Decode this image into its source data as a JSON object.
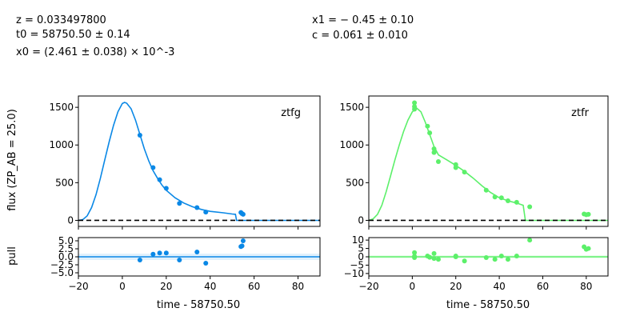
{
  "header": {
    "z": "z = 0.033497800",
    "t0": "t0 = 58750.50 ± 0.14",
    "x0": "x0 = (2.461 ± 0.038) × 10^-3",
    "x1": "x1 = − 0.45 ± 0.10",
    "c": "c = 0.061 ± 0.010"
  },
  "labels": {
    "flux_ylabel": "flux (ZP_AB = 25.0)",
    "pull_ylabel": "pull",
    "xlabel": "time - 58750.50"
  },
  "chart_data": [
    {
      "type": "scatter",
      "panel": "flux",
      "band": "ztfg",
      "color": "#0a88e6",
      "xlim": [
        -20,
        90
      ],
      "ylim": [
        -80,
        1650
      ],
      "xticks": [
        -20,
        0,
        20,
        40,
        60,
        80
      ],
      "yticks": [
        0,
        500,
        1000,
        1500
      ],
      "points": [
        [
          8,
          1130
        ],
        [
          14,
          700
        ],
        [
          17,
          540
        ],
        [
          20,
          425
        ],
        [
          26,
          225
        ],
        [
          34,
          170
        ],
        [
          38,
          110
        ],
        [
          54,
          105
        ],
        [
          54.5,
          90
        ],
        [
          55,
          80
        ]
      ],
      "model": [
        [
          -20,
          0
        ],
        [
          -18,
          10
        ],
        [
          -16,
          60
        ],
        [
          -14,
          170
        ],
        [
          -12,
          340
        ],
        [
          -10,
          560
        ],
        [
          -8,
          800
        ],
        [
          -6,
          1040
        ],
        [
          -4,
          1260
        ],
        [
          -2,
          1440
        ],
        [
          0,
          1550
        ],
        [
          1,
          1565
        ],
        [
          2,
          1555
        ],
        [
          4,
          1480
        ],
        [
          6,
          1330
        ],
        [
          8,
          1140
        ],
        [
          10,
          950
        ],
        [
          12,
          790
        ],
        [
          14,
          660
        ],
        [
          16,
          560
        ],
        [
          18,
          470
        ],
        [
          20,
          400
        ],
        [
          24,
          300
        ],
        [
          28,
          230
        ],
        [
          32,
          180
        ],
        [
          36,
          145
        ],
        [
          40,
          120
        ],
        [
          46,
          100
        ],
        [
          50,
          85
        ],
        [
          51.5,
          80
        ],
        [
          52,
          0
        ],
        [
          90,
          0
        ]
      ],
      "baseline": 0
    },
    {
      "type": "scatter",
      "panel": "flux",
      "band": "ztfr",
      "color": "#5cf06a",
      "xlim": [
        -20,
        90
      ],
      "ylim": [
        -80,
        1650
      ],
      "xticks": [
        -20,
        0,
        20,
        40,
        60,
        80
      ],
      "yticks": [
        0,
        500,
        1000,
        1500
      ],
      "points": [
        [
          1,
          1560
        ],
        [
          1,
          1510
        ],
        [
          1,
          1475
        ],
        [
          7,
          1250
        ],
        [
          8,
          1160
        ],
        [
          10,
          950
        ],
        [
          10,
          900
        ],
        [
          12,
          780
        ],
        [
          20,
          740
        ],
        [
          20,
          700
        ],
        [
          24,
          640
        ],
        [
          34,
          400
        ],
        [
          38,
          310
        ],
        [
          41,
          300
        ],
        [
          44,
          260
        ],
        [
          48,
          240
        ],
        [
          54,
          180
        ],
        [
          79,
          85
        ],
        [
          80,
          75
        ],
        [
          81,
          80
        ]
      ],
      "model": [
        [
          -20,
          0
        ],
        [
          -18,
          20
        ],
        [
          -16,
          80
        ],
        [
          -14,
          200
        ],
        [
          -12,
          380
        ],
        [
          -10,
          590
        ],
        [
          -8,
          800
        ],
        [
          -6,
          1000
        ],
        [
          -4,
          1180
        ],
        [
          -2,
          1330
        ],
        [
          0,
          1440
        ],
        [
          2,
          1490
        ],
        [
          4,
          1440
        ],
        [
          6,
          1300
        ],
        [
          8,
          1140
        ],
        [
          10,
          980
        ],
        [
          12,
          870
        ],
        [
          16,
          800
        ],
        [
          20,
          730
        ],
        [
          24,
          650
        ],
        [
          28,
          560
        ],
        [
          32,
          460
        ],
        [
          36,
          370
        ],
        [
          40,
          300
        ],
        [
          44,
          260
        ],
        [
          48,
          230
        ],
        [
          51,
          200
        ],
        [
          52,
          0
        ],
        [
          90,
          0
        ]
      ],
      "baseline": 0
    },
    {
      "type": "scatter",
      "panel": "pull",
      "band": "ztfg",
      "color": "#0a88e6",
      "xlim": [
        -20,
        90
      ],
      "ylim": [
        -6,
        6
      ],
      "yticks": [
        -5.0,
        -2.5,
        0.0,
        2.5,
        5.0
      ],
      "ytick_labels": [
        "−5.0",
        "−2.5",
        "0.0",
        "2.5",
        "5.0"
      ],
      "xticks": [
        -20,
        0,
        20,
        40,
        60,
        80
      ],
      "xtick_labels": [
        "−20",
        "0",
        "20",
        "40",
        "60",
        "80"
      ],
      "points": [
        [
          8,
          -1
        ],
        [
          14,
          0.8
        ],
        [
          17,
          1.2
        ],
        [
          20,
          1.2
        ],
        [
          26,
          -1
        ],
        [
          34,
          1.5
        ],
        [
          38,
          -2
        ],
        [
          54,
          3.2
        ],
        [
          54.5,
          3.4
        ],
        [
          55,
          5
        ]
      ]
    },
    {
      "type": "scatter",
      "panel": "pull",
      "band": "ztfr",
      "color": "#5cf06a",
      "xlim": [
        -20,
        90
      ],
      "ylim": [
        -11.5,
        11.5
      ],
      "yticks": [
        -10,
        -5,
        0,
        5,
        10
      ],
      "ytick_labels": [
        "−10",
        "−5",
        "0",
        "5",
        "10"
      ],
      "xticks": [
        -20,
        0,
        20,
        40,
        60,
        80
      ],
      "xtick_labels": [
        "−20",
        "0",
        "20",
        "40",
        "60",
        "80"
      ],
      "points": [
        [
          1,
          2.5
        ],
        [
          1,
          -0.5
        ],
        [
          1,
          0.3
        ],
        [
          7,
          0.5
        ],
        [
          8,
          -0.3
        ],
        [
          10,
          -1
        ],
        [
          10,
          2
        ],
        [
          12,
          -1.5
        ],
        [
          20,
          0.5
        ],
        [
          20,
          0
        ],
        [
          24,
          -2.5
        ],
        [
          34,
          -0.5
        ],
        [
          38,
          -1.5
        ],
        [
          41,
          0.5
        ],
        [
          44,
          -1.5
        ],
        [
          48,
          0.5
        ],
        [
          54,
          10
        ],
        [
          79,
          6
        ],
        [
          80,
          4.5
        ],
        [
          81,
          5
        ]
      ]
    }
  ]
}
